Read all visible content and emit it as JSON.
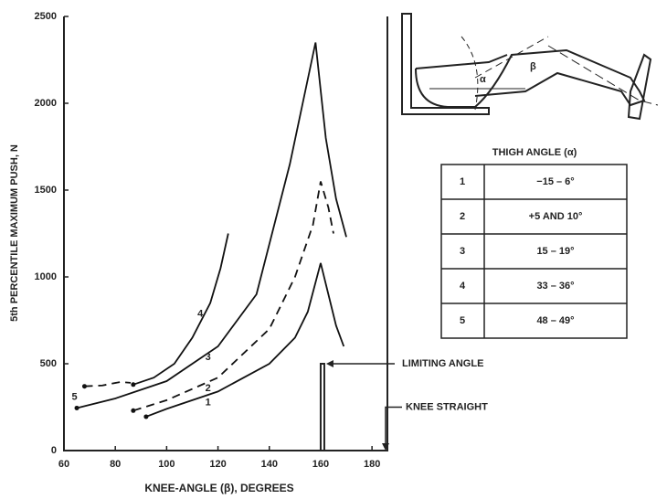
{
  "chart_data": {
    "type": "line",
    "x_label": "KNEE-ANGLE (β), DEGREES",
    "y_label": "5th PERCENTILE MAXIMUM PUSH, N",
    "xlim": [
      60,
      186
    ],
    "xticks": [
      60,
      80,
      100,
      120,
      140,
      160,
      180
    ],
    "ylim": [
      0,
      2500
    ],
    "yticks": [
      0,
      500,
      1000,
      1500,
      2000,
      2500
    ],
    "grid": false,
    "series": [
      {
        "name": "1",
        "color": "#111",
        "dashed": false,
        "x": [
          92,
          100,
          120,
          140,
          150,
          155,
          160,
          163,
          166,
          169
        ],
        "values": [
          195,
          240,
          340,
          500,
          650,
          800,
          1080,
          900,
          720,
          600
        ]
      },
      {
        "name": "2",
        "color": "#111",
        "dashed": true,
        "x": [
          87,
          100,
          120,
          140,
          150,
          157,
          160,
          163,
          165
        ],
        "values": [
          230,
          290,
          420,
          700,
          1000,
          1300,
          1550,
          1400,
          1250
        ]
      },
      {
        "name": "3",
        "color": "#111",
        "dashed": false,
        "x": [
          65,
          80,
          100,
          120,
          135,
          148,
          153,
          158,
          162,
          166,
          170
        ],
        "values": [
          245,
          300,
          400,
          600,
          900,
          1650,
          2000,
          2350,
          1800,
          1450,
          1230
        ]
      },
      {
        "name": "4",
        "color": "#111",
        "dashed": false,
        "x": [
          87,
          95,
          103,
          110,
          117,
          121,
          124
        ],
        "values": [
          380,
          420,
          500,
          650,
          850,
          1050,
          1250
        ]
      },
      {
        "name": "5",
        "color": "#111",
        "dashed": true,
        "x": [
          68,
          75,
          82,
          86
        ],
        "values": [
          370,
          375,
          395,
          390
        ]
      }
    ],
    "annotations": [
      {
        "text": "LIMITING ANGLE",
        "x": 160,
        "y": 500
      },
      {
        "text": "KNEE STRAIGHT",
        "x": 186,
        "y": 250
      }
    ],
    "legend_table": {
      "title": "THIGH ANGLE (α)",
      "rows": [
        [
          "1",
          "−15 – 6°"
        ],
        [
          "2",
          "+5 AND 10°"
        ],
        [
          "3",
          "15 – 19°"
        ],
        [
          "4",
          "33 – 36°"
        ],
        [
          "5",
          "48 – 49°"
        ]
      ]
    },
    "diagram_labels": [
      "α",
      "β"
    ]
  }
}
